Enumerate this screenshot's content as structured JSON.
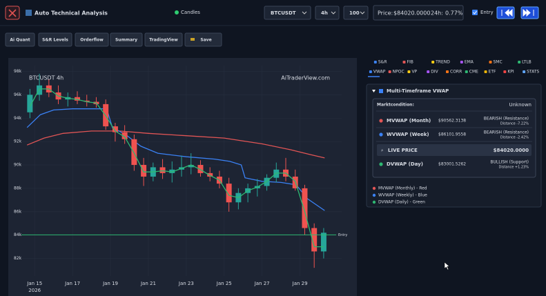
{
  "header": {
    "title": "Auto Technical Analysis",
    "mode": "Candles",
    "symbol": "BTCUSDT",
    "interval": "4h",
    "bars": "100",
    "price_label": "Price:",
    "price": "$84020.0000",
    "change_label": "24h:",
    "change": "0.77%",
    "entry": "Entry"
  },
  "toolbar": [
    "Ai Quant",
    "S&R Levels",
    "Orderflow",
    "Summary",
    "TradingView",
    "Save"
  ],
  "tabs": [
    [
      "S&R",
      "FIB",
      "TREND",
      "EMA",
      "SMC",
      "LTLB"
    ],
    [
      "VWAP",
      "NPOC",
      "VP",
      "DIV",
      "CORR",
      "CME",
      "ETF",
      "KPI",
      "STATS"
    ]
  ],
  "panel": {
    "title": "Multi-Timeframe VWAP",
    "condition_label": "Marktcondition:",
    "condition": "Unknown",
    "rows": [
      {
        "name": "MVWAP (Month)",
        "price": "$90562.3138",
        "signal": "BEARISH (Resistance)",
        "distance": "Distance -7.22%"
      },
      {
        "name": "WVWAP (Week)",
        "price": "$86101.9558",
        "signal": "BEARISH (Resistance)",
        "distance": "Distance -2.42%"
      },
      {
        "name": "DVWAP (Day)",
        "price": "$83001.5262",
        "signal": "BULLISH (Support)",
        "distance": "Distance +1.23%"
      }
    ],
    "live": {
      "label": "LIVE PRICE",
      "price": "$84020.0000"
    },
    "legend": [
      "MVWAP (Monthly) - Red",
      "WVWAP (Weekly) - Blue",
      "DVWAP (Daily) - Green"
    ]
  },
  "chart_data": {
    "type": "candlestick",
    "title": "BTCUSDT 4h",
    "watermark": "AiTraderView.com",
    "year": "2026",
    "xlim": [
      14.3,
      31.2
    ],
    "ylim": [
      80.5,
      98.5
    ],
    "xticks": [
      {
        "value": 15,
        "label": "Jan 15"
      },
      {
        "value": 17,
        "label": "Jan 17"
      },
      {
        "value": 19,
        "label": "Jan 19"
      },
      {
        "value": 21,
        "label": "Jan 21"
      },
      {
        "value": 23,
        "label": "Jan 23"
      },
      {
        "value": 25,
        "label": "Jan 25"
      },
      {
        "value": 27,
        "label": "Jan 27"
      },
      {
        "value": 29,
        "label": "Jan 29"
      }
    ],
    "yticks": [
      {
        "value": 82,
        "label": "82k"
      },
      {
        "value": 84,
        "label": "84k"
      },
      {
        "value": 86,
        "label": "86k"
      },
      {
        "value": 88,
        "label": "88k"
      },
      {
        "value": 90,
        "label": "90k"
      },
      {
        "value": 92,
        "label": "92k"
      },
      {
        "value": 94,
        "label": "94k"
      },
      {
        "value": 96,
        "label": "96k"
      },
      {
        "value": 98,
        "label": "98k"
      }
    ],
    "up_color": "#26a69a",
    "down_color": "#ef5350",
    "candles": {
      "x": [
        14.75,
        15.25,
        15.75,
        16.25,
        16.75,
        17.25,
        17.75,
        18.25,
        18.75,
        19.25,
        19.75,
        20.25,
        20.75,
        21.25,
        21.75,
        22.25,
        22.75,
        23.25,
        23.75,
        24.25,
        24.75,
        25.25,
        25.75,
        26.25,
        26.75,
        27.25,
        27.75,
        28.25,
        28.75,
        29.25,
        29.75,
        30.25
      ],
      "open": [
        94.5,
        96,
        96.8,
        96.2,
        95.6,
        95.8,
        95.5,
        95.4,
        95.2,
        93.3,
        92.8,
        92.2,
        90,
        89,
        89.8,
        89.3,
        89.6,
        89.8,
        90,
        89.3,
        89,
        88.4,
        86.8,
        87.6,
        88,
        88.2,
        88.9,
        89.6,
        89,
        88,
        84.6,
        82.6
      ],
      "high": [
        96.5,
        97.8,
        97.3,
        96.8,
        96.2,
        96.3,
        96,
        95.8,
        95.6,
        93.6,
        93.4,
        92.6,
        90.6,
        90.2,
        90.5,
        90.3,
        90.8,
        91,
        90.4,
        89.8,
        89.5,
        88.9,
        88,
        88.4,
        88.8,
        89.2,
        90.2,
        90.6,
        89.6,
        88.3,
        85,
        84.6
      ],
      "low": [
        94,
        95.5,
        95.8,
        95.2,
        95,
        95.2,
        95,
        94.9,
        93,
        92,
        91.8,
        89.5,
        88.2,
        88.6,
        88.8,
        88.5,
        89,
        89.2,
        89,
        88.6,
        88,
        86,
        86.2,
        86.8,
        87.3,
        87.8,
        88.5,
        88.6,
        87.8,
        84,
        81.2,
        82
      ],
      "close": [
        96,
        96.8,
        96.2,
        95.6,
        95.8,
        95.5,
        95.4,
        95.2,
        93.3,
        92.8,
        92.2,
        90,
        89,
        89.8,
        89.3,
        89.6,
        89.8,
        90,
        89.3,
        89,
        88.4,
        86.8,
        87.6,
        88,
        88.2,
        88.9,
        89.6,
        89,
        88,
        84.6,
        82.6,
        84.2
      ]
    },
    "series": [
      {
        "name": "MVWAP",
        "color": "#e25555",
        "x": [
          14.6,
          15.5,
          16.5,
          18,
          19.5,
          21,
          23,
          25,
          27,
          28.5,
          29.5,
          30.3
        ],
        "values": [
          91.7,
          92.3,
          92.7,
          92.9,
          92.9,
          92.7,
          92.5,
          92.3,
          91.8,
          91.3,
          90.9,
          90.6
        ]
      },
      {
        "name": "WVWAP",
        "color": "#3b82f6",
        "x": [
          14.6,
          15.3,
          16,
          17,
          18.8,
          19.1,
          19.8,
          20.6,
          21.5,
          23,
          24.5,
          25.3,
          25.9,
          26.1,
          27,
          28,
          28.8,
          29.4,
          30.3
        ],
        "values": [
          93.2,
          94.3,
          94.7,
          94.8,
          94.8,
          93.2,
          92.6,
          91.6,
          91,
          90.7,
          90.5,
          90.3,
          90,
          88.9,
          88.6,
          88.5,
          88.3,
          87.1,
          86.1
        ]
      },
      {
        "name": "DVWAP",
        "color": "#2eb872",
        "x": [
          14.75,
          15.25,
          15.75,
          16.25,
          16.75,
          17.25,
          17.75,
          18.25,
          18.75,
          19.25,
          19.75,
          20.25,
          20.75,
          21.25,
          21.75,
          22.25,
          22.75,
          23.25,
          23.75,
          24.25,
          24.75,
          25.25,
          25.75,
          26.25,
          26.75,
          27.25,
          27.75,
          28.25,
          28.75,
          29.25,
          29.75,
          30.25
        ],
        "values": [
          95,
          96.5,
          96.5,
          95.9,
          95.7,
          95.6,
          95.4,
          95.3,
          94.2,
          92.9,
          92.4,
          91,
          89.4,
          89.4,
          89.5,
          89.4,
          89.7,
          90,
          89.6,
          89.1,
          88.7,
          87.4,
          87.2,
          87.8,
          88.1,
          88.6,
          89.3,
          89.3,
          88.6,
          86,
          83,
          83
        ]
      }
    ],
    "entry": {
      "value": 84.02,
      "label": "Entry",
      "color": "#2eb872"
    }
  }
}
